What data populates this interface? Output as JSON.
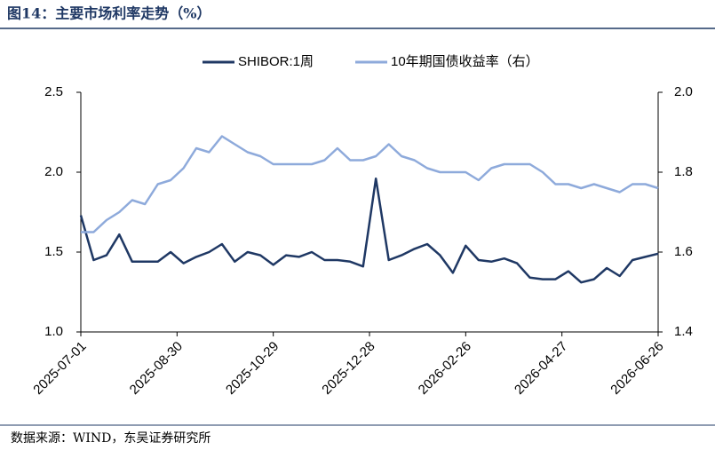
{
  "chart_data": {
    "type": "line",
    "title": "图14：主要市场利率走势（%）",
    "source": "数据来源：WIND，东吴证券研究所",
    "x": [
      "2025-07-01",
      "2025-07-09",
      "2025-07-17",
      "2025-07-25",
      "2025-08-02",
      "2025-08-10",
      "2025-08-18",
      "2025-08-26",
      "2025-09-03",
      "2025-09-11",
      "2025-09-19",
      "2025-09-27",
      "2025-10-05",
      "2025-10-13",
      "2025-10-21",
      "2025-10-29",
      "2025-11-06",
      "2025-11-14",
      "2025-11-22",
      "2025-11-30",
      "2025-12-08",
      "2025-12-16",
      "2025-12-24",
      "2026-01-01",
      "2026-01-09",
      "2026-01-17",
      "2026-01-25",
      "2026-02-02",
      "2026-02-10",
      "2026-02-18",
      "2026-02-26",
      "2026-03-06",
      "2026-03-14",
      "2026-03-22",
      "2026-03-30",
      "2026-04-07",
      "2026-04-15",
      "2026-04-23",
      "2026-05-01",
      "2026-05-09",
      "2026-05-17",
      "2026-05-25",
      "2026-06-02",
      "2026-06-10",
      "2026-06-18",
      "2026-06-26"
    ],
    "series": [
      {
        "name": "SHIBOR:1周",
        "color": "#1f3864",
        "values": [
          1.73,
          1.45,
          1.48,
          1.61,
          1.44,
          1.44,
          1.44,
          1.5,
          1.43,
          1.47,
          1.5,
          1.55,
          1.44,
          1.5,
          1.48,
          1.42,
          1.48,
          1.47,
          1.5,
          1.45,
          1.45,
          1.44,
          1.41,
          1.96,
          1.45,
          1.48,
          1.52,
          1.55,
          1.48,
          1.37,
          1.54,
          1.45,
          1.44,
          1.46,
          1.43,
          1.34,
          1.33,
          1.33,
          1.38,
          1.31,
          1.33,
          1.4,
          1.35,
          1.45,
          1.47,
          1.49
        ]
      },
      {
        "name": "10年期国债收益率（右）",
        "color": "#8eaadb",
        "axis": "y2",
        "values": [
          1.65,
          1.65,
          1.68,
          1.7,
          1.73,
          1.72,
          1.77,
          1.78,
          1.81,
          1.86,
          1.85,
          1.89,
          1.87,
          1.85,
          1.84,
          1.82,
          1.82,
          1.82,
          1.82,
          1.83,
          1.86,
          1.83,
          1.83,
          1.84,
          1.87,
          1.84,
          1.83,
          1.81,
          1.8,
          1.8,
          1.8,
          1.78,
          1.81,
          1.82,
          1.82,
          1.82,
          1.8,
          1.77,
          1.77,
          1.76,
          1.77,
          1.76,
          1.75,
          1.77,
          1.77,
          1.76
        ]
      }
    ],
    "xlim": [
      "2025-07-01",
      "2026-06-26"
    ],
    "xticks": [
      "2025-07-01",
      "2025-08-30",
      "2025-10-29",
      "2025-12-28",
      "2026-02-26",
      "2026-04-27",
      "2026-06-26"
    ],
    "ylim": [
      1.0,
      2.5
    ],
    "yticks": [
      {
        "value": 1,
        "label": "1.0"
      },
      1.5,
      {
        "value": 2,
        "label": "2.0"
      },
      2.5
    ],
    "y2lim": [
      1.4,
      2.0
    ],
    "y2ticks": [
      1.4,
      1.6,
      1.8,
      {
        "value": 2,
        "label": "2.0"
      }
    ],
    "grid": false,
    "legend": "top"
  }
}
